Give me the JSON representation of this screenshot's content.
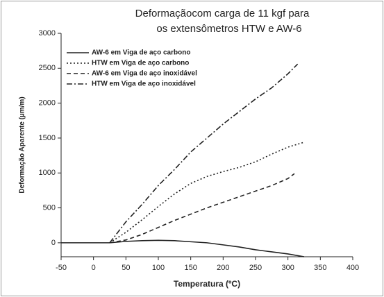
{
  "chart_data": {
    "type": "line",
    "title": "Deformaçãocom carga de 11 kgf para",
    "subtitle": "os extensômetros HTW e AW-6",
    "x_label": "Temperatura (ºC)",
    "y_label": "Deformação Aparente (µm/m)",
    "xlim": [
      -50,
      400
    ],
    "xticks": [
      -50,
      0,
      50,
      100,
      150,
      200,
      250,
      300,
      350,
      400
    ],
    "ylim": [
      -200,
      3000
    ],
    "yticks": [
      0,
      500,
      1000,
      1500,
      2000,
      2500,
      3000
    ],
    "legend": "upper left",
    "series": [
      {
        "name": "AW-6 em Viga de aço carbono",
        "color": "#222222",
        "dash": "solid",
        "x": [
          -50,
          0,
          25,
          50,
          75,
          100,
          125,
          150,
          175,
          200,
          225,
          250,
          275,
          300,
          325
        ],
        "values": [
          0,
          0,
          0,
          20,
          30,
          35,
          30,
          15,
          0,
          -30,
          -60,
          -100,
          -130,
          -160,
          -200
        ]
      },
      {
        "name": "HTW  em Viga de aço carbono",
        "color": "#222222",
        "dash": "dotted",
        "x": [
          25,
          50,
          75,
          100,
          125,
          150,
          175,
          200,
          225,
          250,
          275,
          300,
          325
        ],
        "values": [
          0,
          150,
          330,
          520,
          700,
          850,
          950,
          1020,
          1080,
          1160,
          1270,
          1370,
          1440
        ]
      },
      {
        "name": "AW-6 em Viga de aço inoxidável",
        "color": "#222222",
        "dash": "dashed",
        "x": [
          25,
          50,
          75,
          100,
          125,
          150,
          175,
          200,
          225,
          250,
          275,
          300,
          310
        ],
        "values": [
          0,
          40,
          120,
          220,
          320,
          410,
          500,
          580,
          660,
          740,
          820,
          920,
          990
        ]
      },
      {
        "name": "HTW em Viga de aço inoxidável",
        "color": "#222222",
        "dash": "dashdot",
        "x": [
          25,
          50,
          75,
          100,
          125,
          150,
          175,
          200,
          225,
          250,
          275,
          300,
          315
        ],
        "values": [
          0,
          300,
          550,
          820,
          1050,
          1300,
          1500,
          1700,
          1880,
          2060,
          2220,
          2420,
          2560
        ]
      }
    ]
  }
}
